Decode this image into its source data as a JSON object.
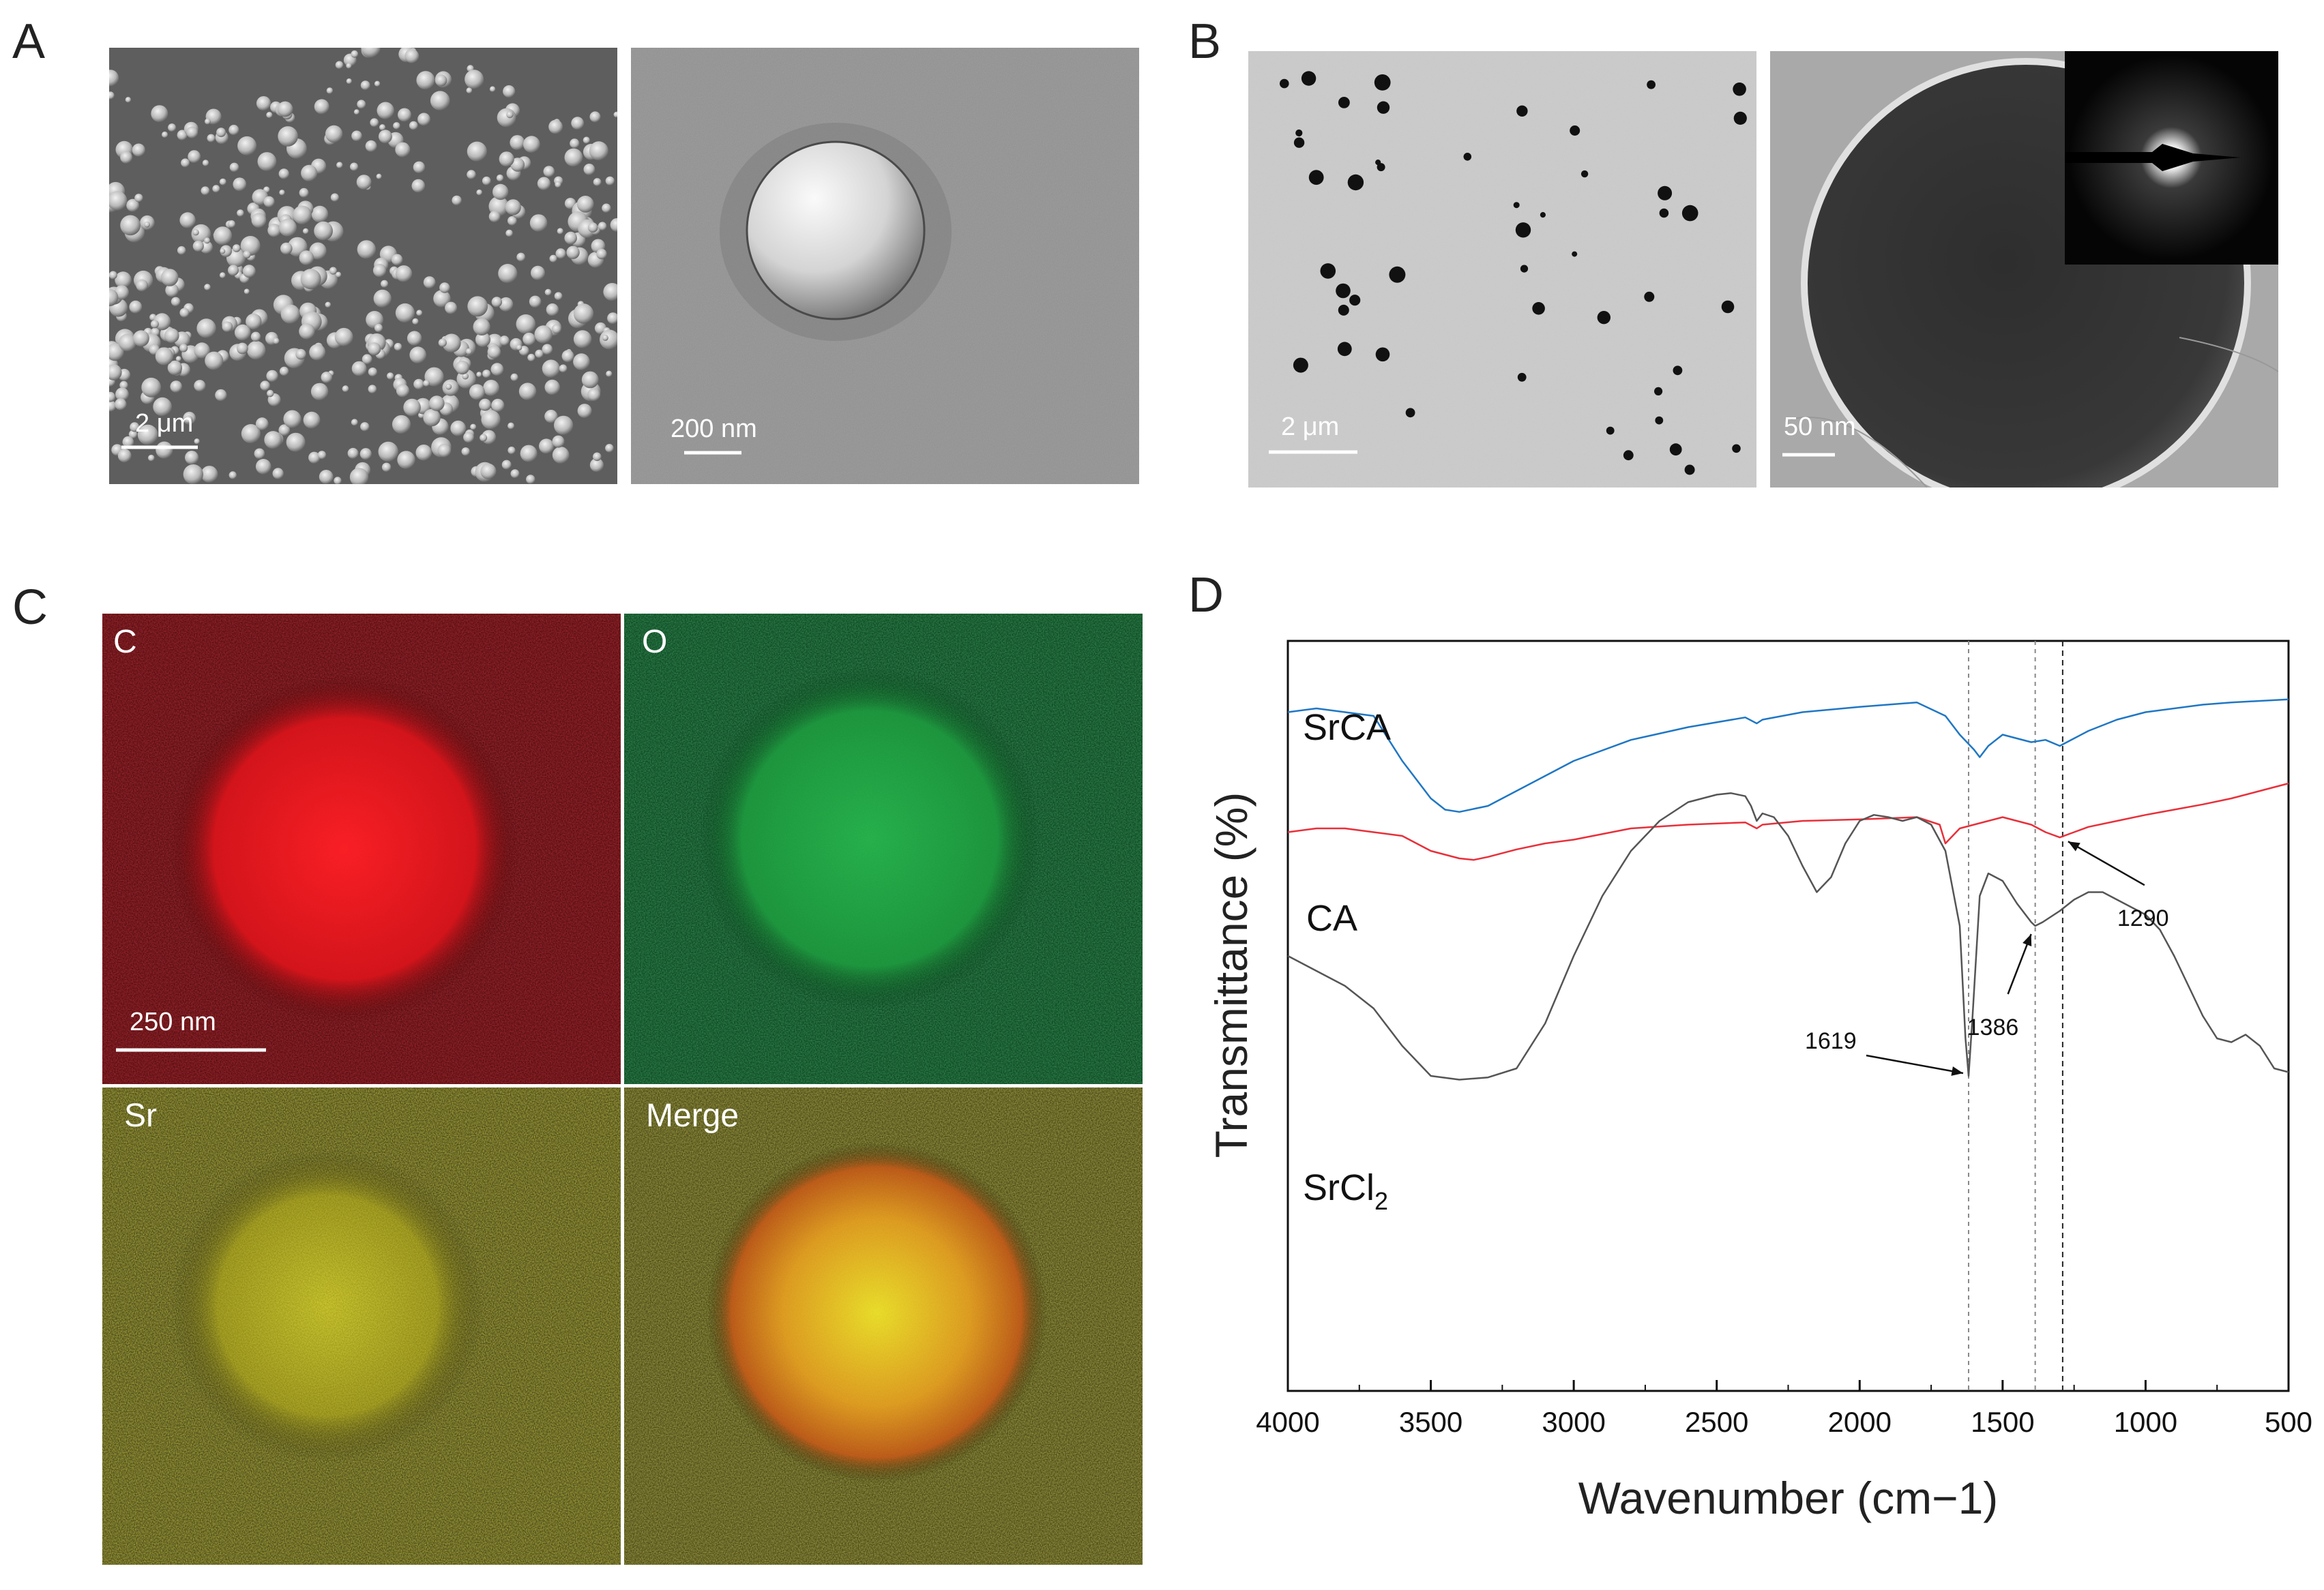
{
  "panels": {
    "A": {
      "letter": "A",
      "left_image": {
        "scale_label": "2 μm"
      },
      "right_image": {
        "scale_label": "200 nm"
      }
    },
    "B": {
      "letter": "B",
      "left_image": {
        "scale_label": "2 μm"
      },
      "right_image": {
        "scale_label": "50 nm"
      }
    },
    "C": {
      "letter": "C",
      "maps": [
        {
          "label": "C",
          "color": "#e0141e"
        },
        {
          "label": "O",
          "color": "#22b24a"
        },
        {
          "label": "Sr",
          "color": "#e6e01e"
        },
        {
          "label": "Merge",
          "color": "#d4c41c"
        }
      ],
      "scale_label": "250 nm"
    },
    "D": {
      "letter": "D"
    }
  },
  "chart_data": {
    "type": "line",
    "xlabel": "Wavenumber (cm−1)",
    "ylabel": "Transmittance (%)",
    "xlim": [
      4000,
      500
    ],
    "x_ticks": [
      "4000",
      "3500",
      "3000",
      "2500",
      "2000",
      "1500",
      "1000",
      "500"
    ],
    "grid": false,
    "reference_lines": [
      1619,
      1386,
      1290
    ],
    "annotations": [
      {
        "text": "1290",
        "x": 1290,
        "series": "CA"
      },
      {
        "text": "1386",
        "x": 1386,
        "series": "SrCl2"
      },
      {
        "text": "1619",
        "x": 1619,
        "series": "SrCl2"
      }
    ],
    "series": [
      {
        "name": "SrCA",
        "label_main": "SrCA",
        "color": "#1f77c4",
        "points": [
          [
            4000,
            0.905
          ],
          [
            3900,
            0.91
          ],
          [
            3800,
            0.905
          ],
          [
            3700,
            0.9
          ],
          [
            3600,
            0.84
          ],
          [
            3500,
            0.79
          ],
          [
            3450,
            0.775
          ],
          [
            3400,
            0.772
          ],
          [
            3300,
            0.78
          ],
          [
            3200,
            0.8
          ],
          [
            3100,
            0.82
          ],
          [
            3000,
            0.84
          ],
          [
            2800,
            0.868
          ],
          [
            2600,
            0.885
          ],
          [
            2400,
            0.898
          ],
          [
            2360,
            0.89
          ],
          [
            2340,
            0.895
          ],
          [
            2200,
            0.905
          ],
          [
            2000,
            0.912
          ],
          [
            1800,
            0.918
          ],
          [
            1700,
            0.9
          ],
          [
            1650,
            0.875
          ],
          [
            1600,
            0.855
          ],
          [
            1580,
            0.845
          ],
          [
            1550,
            0.86
          ],
          [
            1500,
            0.875
          ],
          [
            1450,
            0.87
          ],
          [
            1400,
            0.865
          ],
          [
            1350,
            0.868
          ],
          [
            1300,
            0.86
          ],
          [
            1250,
            0.87
          ],
          [
            1200,
            0.88
          ],
          [
            1100,
            0.895
          ],
          [
            1000,
            0.905
          ],
          [
            800,
            0.915
          ],
          [
            700,
            0.918
          ],
          [
            600,
            0.92
          ],
          [
            500,
            0.922
          ]
        ]
      },
      {
        "name": "CA",
        "label_main": "CA",
        "color": "#e8303a",
        "points": [
          [
            4000,
            0.745
          ],
          [
            3900,
            0.75
          ],
          [
            3800,
            0.75
          ],
          [
            3700,
            0.745
          ],
          [
            3600,
            0.74
          ],
          [
            3500,
            0.72
          ],
          [
            3400,
            0.71
          ],
          [
            3350,
            0.708
          ],
          [
            3300,
            0.712
          ],
          [
            3200,
            0.722
          ],
          [
            3100,
            0.73
          ],
          [
            3000,
            0.735
          ],
          [
            2800,
            0.75
          ],
          [
            2600,
            0.755
          ],
          [
            2400,
            0.758
          ],
          [
            2360,
            0.75
          ],
          [
            2340,
            0.755
          ],
          [
            2200,
            0.76
          ],
          [
            2000,
            0.762
          ],
          [
            1800,
            0.765
          ],
          [
            1720,
            0.755
          ],
          [
            1700,
            0.73
          ],
          [
            1650,
            0.75
          ],
          [
            1600,
            0.755
          ],
          [
            1550,
            0.76
          ],
          [
            1500,
            0.765
          ],
          [
            1450,
            0.76
          ],
          [
            1400,
            0.755
          ],
          [
            1350,
            0.745
          ],
          [
            1300,
            0.738
          ],
          [
            1250,
            0.745
          ],
          [
            1200,
            0.752
          ],
          [
            1100,
            0.76
          ],
          [
            1000,
            0.768
          ],
          [
            900,
            0.775
          ],
          [
            800,
            0.782
          ],
          [
            700,
            0.79
          ],
          [
            600,
            0.8
          ],
          [
            500,
            0.81
          ]
        ]
      },
      {
        "name": "SrCl2",
        "label_main": "SrCl",
        "label_sub": "2",
        "color": "#555555",
        "points": [
          [
            4000,
            0.58
          ],
          [
            3900,
            0.56
          ],
          [
            3800,
            0.54
          ],
          [
            3700,
            0.51
          ],
          [
            3600,
            0.46
          ],
          [
            3500,
            0.42
          ],
          [
            3400,
            0.415
          ],
          [
            3300,
            0.418
          ],
          [
            3200,
            0.43
          ],
          [
            3100,
            0.49
          ],
          [
            3000,
            0.58
          ],
          [
            2900,
            0.66
          ],
          [
            2800,
            0.72
          ],
          [
            2700,
            0.76
          ],
          [
            2600,
            0.785
          ],
          [
            2500,
            0.795
          ],
          [
            2450,
            0.797
          ],
          [
            2400,
            0.793
          ],
          [
            2380,
            0.78
          ],
          [
            2360,
            0.76
          ],
          [
            2340,
            0.77
          ],
          [
            2300,
            0.765
          ],
          [
            2250,
            0.74
          ],
          [
            2200,
            0.7
          ],
          [
            2150,
            0.665
          ],
          [
            2100,
            0.685
          ],
          [
            2050,
            0.73
          ],
          [
            2000,
            0.76
          ],
          [
            1950,
            0.768
          ],
          [
            1900,
            0.765
          ],
          [
            1850,
            0.76
          ],
          [
            1800,
            0.765
          ],
          [
            1750,
            0.755
          ],
          [
            1700,
            0.72
          ],
          [
            1650,
            0.62
          ],
          [
            1630,
            0.47
          ],
          [
            1619,
            0.42
          ],
          [
            1605,
            0.5
          ],
          [
            1580,
            0.66
          ],
          [
            1550,
            0.69
          ],
          [
            1500,
            0.68
          ],
          [
            1450,
            0.65
          ],
          [
            1400,
            0.625
          ],
          [
            1386,
            0.62
          ],
          [
            1360,
            0.625
          ],
          [
            1300,
            0.64
          ],
          [
            1250,
            0.655
          ],
          [
            1200,
            0.665
          ],
          [
            1150,
            0.665
          ],
          [
            1100,
            0.655
          ],
          [
            1000,
            0.635
          ],
          [
            950,
            0.615
          ],
          [
            900,
            0.58
          ],
          [
            850,
            0.54
          ],
          [
            800,
            0.5
          ],
          [
            750,
            0.47
          ],
          [
            700,
            0.465
          ],
          [
            650,
            0.475
          ],
          [
            600,
            0.46
          ],
          [
            550,
            0.43
          ],
          [
            500,
            0.425
          ]
        ]
      }
    ]
  }
}
